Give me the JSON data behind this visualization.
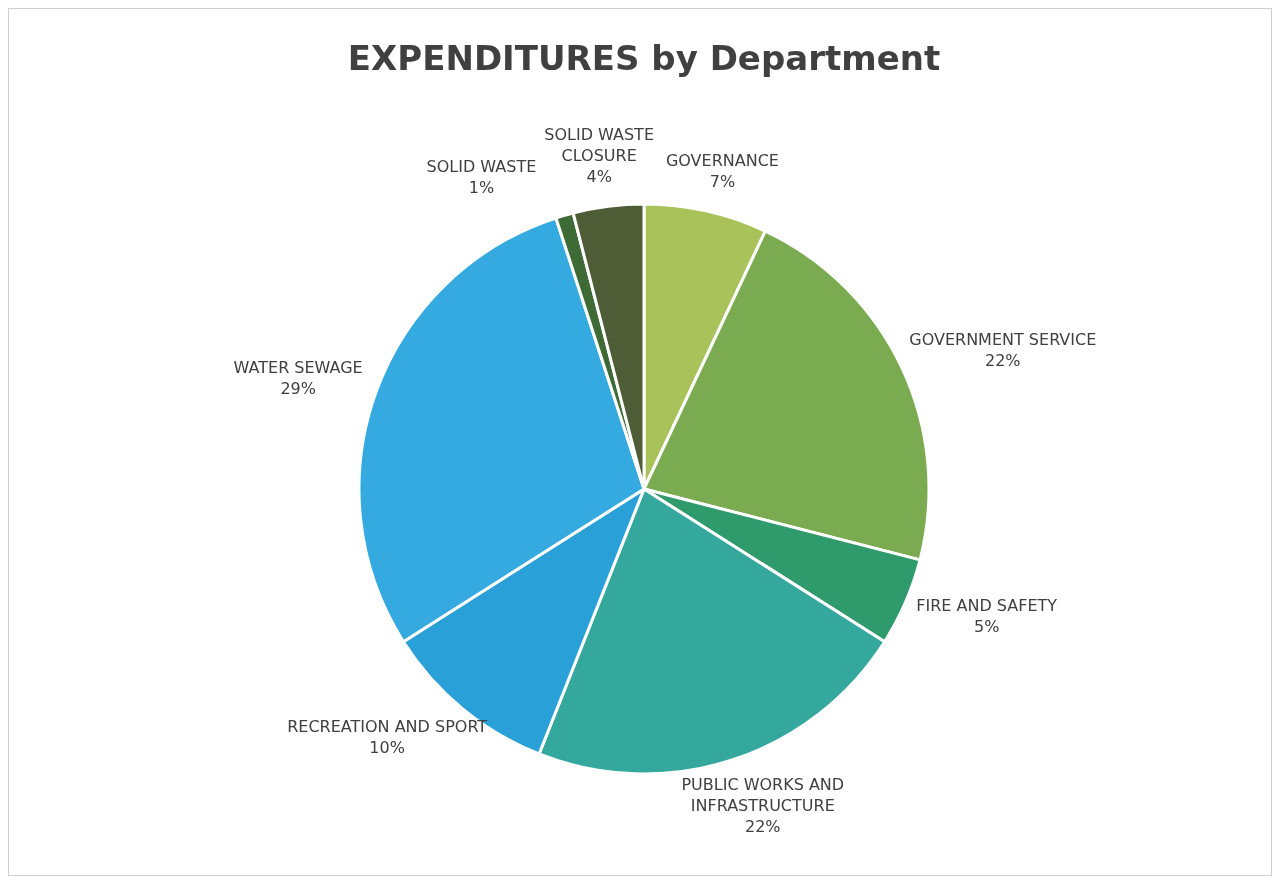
{
  "chart_data": {
    "type": "pie",
    "title": "EXPENDITURES by Department",
    "categories": [
      "GOVERNANCE",
      "GOVERNMENT SERVICE",
      "FIRE AND SAFETY",
      "PUBLIC WORKS AND INFRASTRUCTURE",
      "RECREATION AND SPORT",
      "WATER SEWAGE",
      "SOLID WASTE",
      "SOLID WASTE CLOSURE"
    ],
    "values": [
      7,
      22,
      5,
      22,
      10,
      29,
      1,
      4
    ],
    "value_labels": [
      "7%",
      "22%",
      "5%",
      "22%",
      "10%",
      "29%",
      "1%",
      "4%"
    ],
    "colors": [
      "#a9c25a",
      "#7bab50",
      "#2f9a6c",
      "#35a89d",
      "#2aa0d9",
      "#34aae1",
      "#3e6a36",
      "#4e5d36"
    ],
    "legend": false
  }
}
